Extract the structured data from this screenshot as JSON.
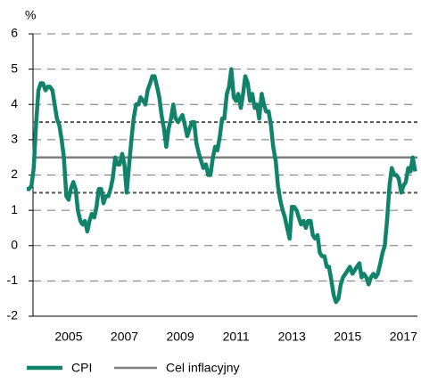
{
  "chart_data": {
    "type": "line",
    "y_unit": "%",
    "x": [
      2004.0,
      2004.08,
      2004.17,
      2004.25,
      2004.33,
      2004.42,
      2004.5,
      2004.58,
      2004.67,
      2004.75,
      2004.83,
      2004.92,
      2005.0,
      2005.08,
      2005.17,
      2005.25,
      2005.33,
      2005.42,
      2005.5,
      2005.58,
      2005.67,
      2005.75,
      2005.83,
      2005.92,
      2006.0,
      2006.08,
      2006.17,
      2006.25,
      2006.33,
      2006.42,
      2006.5,
      2006.58,
      2006.67,
      2006.75,
      2006.83,
      2006.92,
      2007.0,
      2007.08,
      2007.17,
      2007.25,
      2007.33,
      2007.42,
      2007.5,
      2007.58,
      2007.67,
      2007.75,
      2007.83,
      2007.92,
      2008.0,
      2008.08,
      2008.17,
      2008.25,
      2008.33,
      2008.42,
      2008.5,
      2008.58,
      2008.67,
      2008.75,
      2008.83,
      2008.92,
      2009.0,
      2009.08,
      2009.17,
      2009.25,
      2009.33,
      2009.42,
      2009.5,
      2009.58,
      2009.67,
      2009.75,
      2009.83,
      2009.92,
      2010.0,
      2010.08,
      2010.17,
      2010.25,
      2010.33,
      2010.42,
      2010.5,
      2010.58,
      2010.67,
      2010.75,
      2010.83,
      2010.92,
      2011.0,
      2011.08,
      2011.17,
      2011.25,
      2011.33,
      2011.42,
      2011.5,
      2011.58,
      2011.67,
      2011.75,
      2011.83,
      2011.92,
      2012.0,
      2012.08,
      2012.17,
      2012.25,
      2012.33,
      2012.42,
      2012.5,
      2012.58,
      2012.67,
      2012.75,
      2012.83,
      2012.92,
      2013.0,
      2013.08,
      2013.17,
      2013.25,
      2013.33,
      2013.42,
      2013.5,
      2013.58,
      2013.67,
      2013.75,
      2013.83,
      2013.92,
      2014.0,
      2014.08,
      2014.17,
      2014.25,
      2014.33,
      2014.42,
      2014.5,
      2014.58,
      2014.67,
      2014.75,
      2014.83,
      2014.92,
      2015.0,
      2015.08,
      2015.17,
      2015.25,
      2015.33,
      2015.42,
      2015.5,
      2015.58,
      2015.67,
      2015.75,
      2015.83,
      2015.92,
      2016.0,
      2016.08,
      2016.17,
      2016.25,
      2016.33,
      2016.42,
      2016.5,
      2016.58,
      2016.67,
      2016.75,
      2016.83,
      2016.92,
      2017.0,
      2017.08,
      2017.17,
      2017.25,
      2017.33,
      2017.42,
      2017.5,
      2017.58,
      2017.67,
      2017.75,
      2017.83,
      2017.92
    ],
    "series": [
      {
        "name": "CPI",
        "color": "#11836b",
        "values": [
          1.6,
          1.6,
          1.7,
          2.2,
          3.4,
          4.4,
          4.6,
          4.6,
          4.4,
          4.5,
          4.5,
          4.4,
          4.0,
          3.6,
          3.4,
          3.0,
          2.5,
          1.4,
          1.3,
          1.6,
          1.8,
          1.6,
          1.0,
          0.7,
          0.6,
          0.7,
          0.4,
          0.7,
          0.9,
          0.8,
          1.1,
          1.6,
          1.6,
          1.2,
          1.4,
          1.4,
          1.6,
          1.9,
          2.5,
          2.3,
          2.3,
          2.6,
          2.3,
          1.5,
          2.3,
          3.0,
          3.6,
          4.0,
          4.0,
          4.2,
          4.1,
          4.0,
          4.4,
          4.6,
          4.8,
          4.8,
          4.5,
          4.2,
          3.7,
          3.3,
          2.8,
          3.3,
          3.6,
          4.0,
          3.6,
          3.5,
          3.6,
          3.7,
          3.4,
          3.1,
          3.3,
          3.5,
          3.5,
          2.9,
          2.6,
          2.4,
          2.2,
          2.3,
          2.0,
          2.0,
          2.5,
          2.8,
          2.7,
          3.1,
          3.6,
          3.6,
          4.3,
          4.5,
          5.0,
          4.2,
          4.1,
          4.3,
          3.9,
          4.3,
          4.8,
          4.6,
          4.1,
          4.3,
          3.9,
          4.0,
          3.6,
          4.3,
          4.0,
          3.8,
          3.8,
          3.4,
          2.8,
          2.4,
          1.7,
          1.3,
          1.0,
          0.8,
          0.5,
          0.2,
          1.1,
          1.1,
          1.0,
          0.8,
          0.6,
          0.7,
          0.5,
          0.7,
          0.7,
          0.3,
          0.2,
          0.3,
          -0.2,
          -0.3,
          -0.3,
          -0.6,
          -0.6,
          -1.0,
          -1.4,
          -1.6,
          -1.5,
          -1.1,
          -0.9,
          -0.8,
          -0.7,
          -0.6,
          -0.8,
          -0.7,
          -0.6,
          -0.5,
          -0.9,
          -0.8,
          -0.9,
          -1.1,
          -0.9,
          -0.8,
          -0.9,
          -0.8,
          -0.5,
          -0.2,
          0.0,
          0.8,
          1.7,
          2.2,
          2.0,
          2.0,
          1.9,
          1.5,
          1.7,
          1.8,
          2.2,
          2.1,
          2.5,
          2.1
        ]
      }
    ],
    "target": {
      "name": "Cel inflacyjny",
      "value": 2.5,
      "color": "#808080"
    },
    "band": [
      1.5,
      3.5
    ],
    "band_color": "#555555",
    "xlim": [
      2004,
      2018
    ],
    "xticks": [
      {
        "value": 2005.5,
        "label": "2005"
      },
      {
        "value": 2007.5,
        "label": "2007"
      },
      {
        "value": 2009.5,
        "label": "2009"
      },
      {
        "value": 2011.5,
        "label": "2011"
      },
      {
        "value": 2013.5,
        "label": "2013"
      },
      {
        "value": 2015.5,
        "label": "2015"
      },
      {
        "value": 2017.5,
        "label": "2017"
      }
    ],
    "ylim": [
      -2,
      6
    ],
    "yticks": [
      -2,
      -1,
      0,
      1,
      2,
      3,
      4,
      5,
      6
    ],
    "grid": true
  }
}
